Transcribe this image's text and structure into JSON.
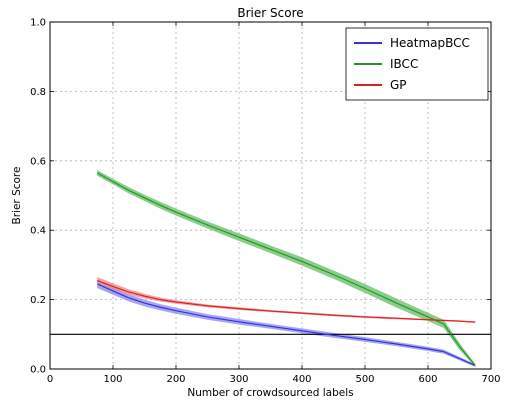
{
  "chart_data": {
    "type": "line",
    "title": "Brier Score",
    "xlabel": "Number of crowdsourced labels",
    "ylabel": "Brier Score",
    "xlim": [
      0,
      700
    ],
    "ylim": [
      0,
      1.0
    ],
    "xticks": [
      0,
      100,
      200,
      300,
      400,
      500,
      600,
      700
    ],
    "yticks": [
      0.0,
      0.2,
      0.4,
      0.6,
      0.8,
      1.0
    ],
    "ytick_labels": [
      "0.0",
      "0.2",
      "0.4",
      "0.6",
      "0.8",
      "1.0"
    ],
    "grid": true,
    "legend_position": "top-right",
    "reference_line": {
      "y": 0.1,
      "color": "#000000"
    },
    "series": [
      {
        "name": "HeatmapBCC",
        "color": "#3333dd",
        "band_color": "#8888ee",
        "x": [
          75,
          100,
          125,
          150,
          175,
          200,
          250,
          300,
          350,
          400,
          450,
          500,
          550,
          600,
          625,
          650,
          675
        ],
        "y": [
          0.245,
          0.225,
          0.205,
          0.19,
          0.178,
          0.168,
          0.15,
          0.136,
          0.123,
          0.11,
          0.097,
          0.085,
          0.072,
          0.058,
          0.05,
          0.03,
          0.01
        ],
        "band": [
          0.012,
          0.011,
          0.01,
          0.01,
          0.009,
          0.009,
          0.008,
          0.008,
          0.007,
          0.007,
          0.007,
          0.007,
          0.006,
          0.006,
          0.006,
          0.005,
          0.004
        ]
      },
      {
        "name": "IBCC",
        "color": "#229922",
        "band_color": "#66bb66",
        "x": [
          75,
          100,
          125,
          150,
          175,
          200,
          250,
          300,
          350,
          400,
          450,
          500,
          550,
          600,
          625,
          650,
          675
        ],
        "y": [
          0.565,
          0.54,
          0.515,
          0.493,
          0.472,
          0.452,
          0.415,
          0.38,
          0.345,
          0.31,
          0.272,
          0.232,
          0.19,
          0.15,
          0.13,
          0.065,
          0.01
        ],
        "band": [
          0.008,
          0.008,
          0.009,
          0.009,
          0.01,
          0.01,
          0.01,
          0.011,
          0.011,
          0.012,
          0.012,
          0.013,
          0.013,
          0.012,
          0.012,
          0.01,
          0.004
        ]
      },
      {
        "name": "GP",
        "color": "#dd2222",
        "band_color": "#ee8888",
        "x": [
          75,
          100,
          125,
          150,
          175,
          200,
          250,
          300,
          350,
          400,
          450,
          500,
          550,
          600,
          650,
          675
        ],
        "y": [
          0.255,
          0.238,
          0.222,
          0.21,
          0.2,
          0.193,
          0.182,
          0.174,
          0.167,
          0.161,
          0.155,
          0.15,
          0.146,
          0.142,
          0.138,
          0.135
        ],
        "band": [
          0.01,
          0.009,
          0.008,
          0.007,
          0.006,
          0.005,
          0.004,
          0.004,
          0.003,
          0.003,
          0.003,
          0.003,
          0.003,
          0.002,
          0.002,
          0.002
        ]
      }
    ]
  }
}
